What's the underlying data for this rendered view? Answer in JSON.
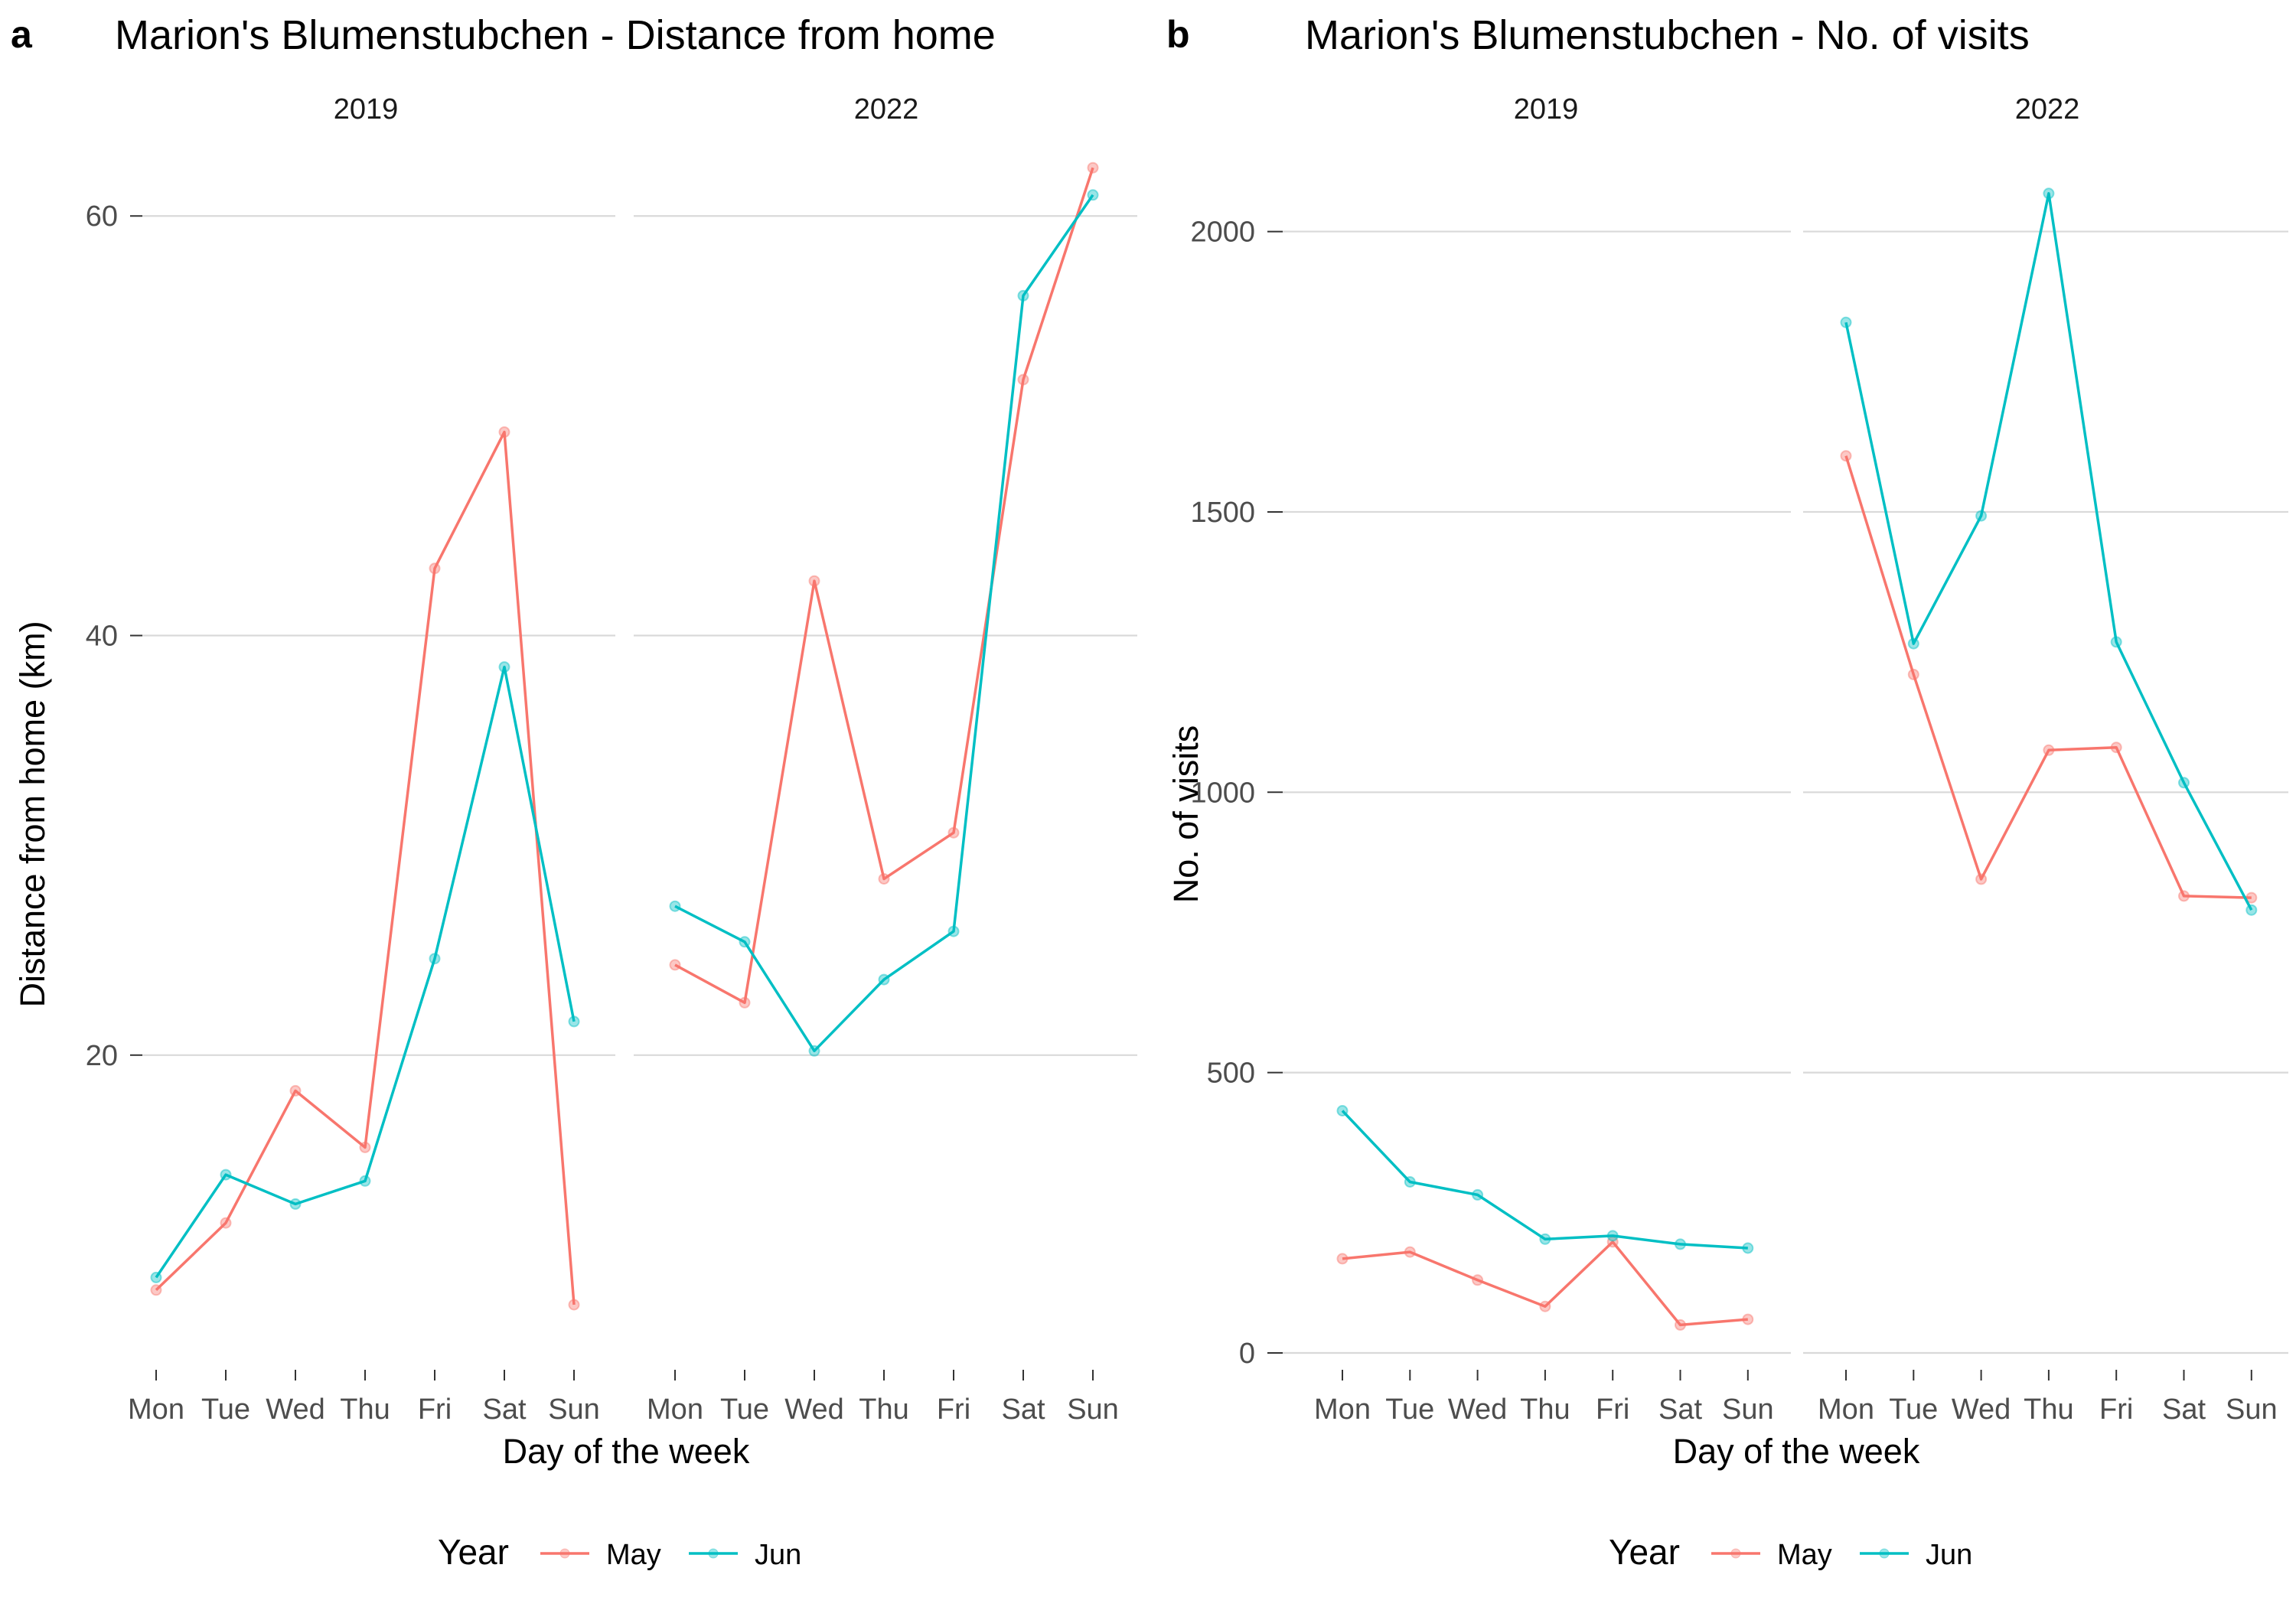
{
  "chart_data": [
    {
      "type": "line",
      "tag": "a",
      "title": "Marion's Blumenstubchen - Distance from home",
      "xlabel": "Day of the week",
      "ylabel": "Distance from home (km)",
      "ylim": [
        5,
        63
      ],
      "yticks": [
        20,
        40,
        60
      ],
      "ytick_labels": [
        "20",
        "40",
        "60"
      ],
      "categories": [
        "Mon",
        "Tue",
        "Wed",
        "Thu",
        "Fri",
        "Sat",
        "Sun"
      ],
      "grid": "horizontal major gridlines",
      "legend_position": "bottom",
      "legend": {
        "title": "Year",
        "entries": [
          "May",
          "Jun"
        ]
      },
      "series_colors": {
        "May": "#F8766D",
        "Jun": "#00BFC4"
      },
      "panels": [
        {
          "label": "2019",
          "series": [
            {
              "name": "May",
              "values": [
                8.8,
                12.0,
                18.3,
                15.6,
                43.2,
                49.7,
                8.1
              ]
            },
            {
              "name": "Jun",
              "values": [
                9.4,
                14.3,
                12.9,
                14.0,
                24.6,
                38.5,
                21.6
              ]
            }
          ]
        },
        {
          "label": "2022",
          "series": [
            {
              "name": "May",
              "values": [
                24.3,
                22.5,
                42.6,
                28.4,
                30.6,
                52.2,
                62.3
              ]
            },
            {
              "name": "Jun",
              "values": [
                27.1,
                25.4,
                20.2,
                23.6,
                25.9,
                56.2,
                61.0
              ]
            }
          ]
        }
      ]
    },
    {
      "type": "line",
      "tag": "b",
      "title": "Marion's Blumenstubchen - No. of visits",
      "xlabel": "Day of the week",
      "ylabel": "No. of visits",
      "ylim": [
        -30,
        2140
      ],
      "yticks": [
        0,
        500,
        1000,
        1500,
        2000
      ],
      "ytick_labels": [
        "0",
        "500",
        "1000",
        "1500",
        "2000"
      ],
      "categories": [
        "Mon",
        "Tue",
        "Wed",
        "Thu",
        "Fri",
        "Sat",
        "Sun"
      ],
      "grid": "horizontal major gridlines",
      "legend_position": "bottom",
      "legend": {
        "title": "Year",
        "entries": [
          "May",
          "Jun"
        ]
      },
      "series_colors": {
        "May": "#F8766D",
        "Jun": "#00BFC4"
      },
      "panels": [
        {
          "label": "2019",
          "series": [
            {
              "name": "May",
              "values": [
                168,
                180,
                130,
                83,
                198,
                50,
                60
              ]
            },
            {
              "name": "Jun",
              "values": [
                432,
                305,
                282,
                203,
                209,
                194,
                187
              ]
            }
          ]
        },
        {
          "label": "2022",
          "series": [
            {
              "name": "May",
              "values": [
                1600,
                1210,
                845,
                1075,
                1080,
                815,
                812
              ]
            },
            {
              "name": "Jun",
              "values": [
                1838,
                1265,
                1493,
                2068,
                1268,
                1017,
                790
              ]
            }
          ]
        }
      ]
    }
  ]
}
